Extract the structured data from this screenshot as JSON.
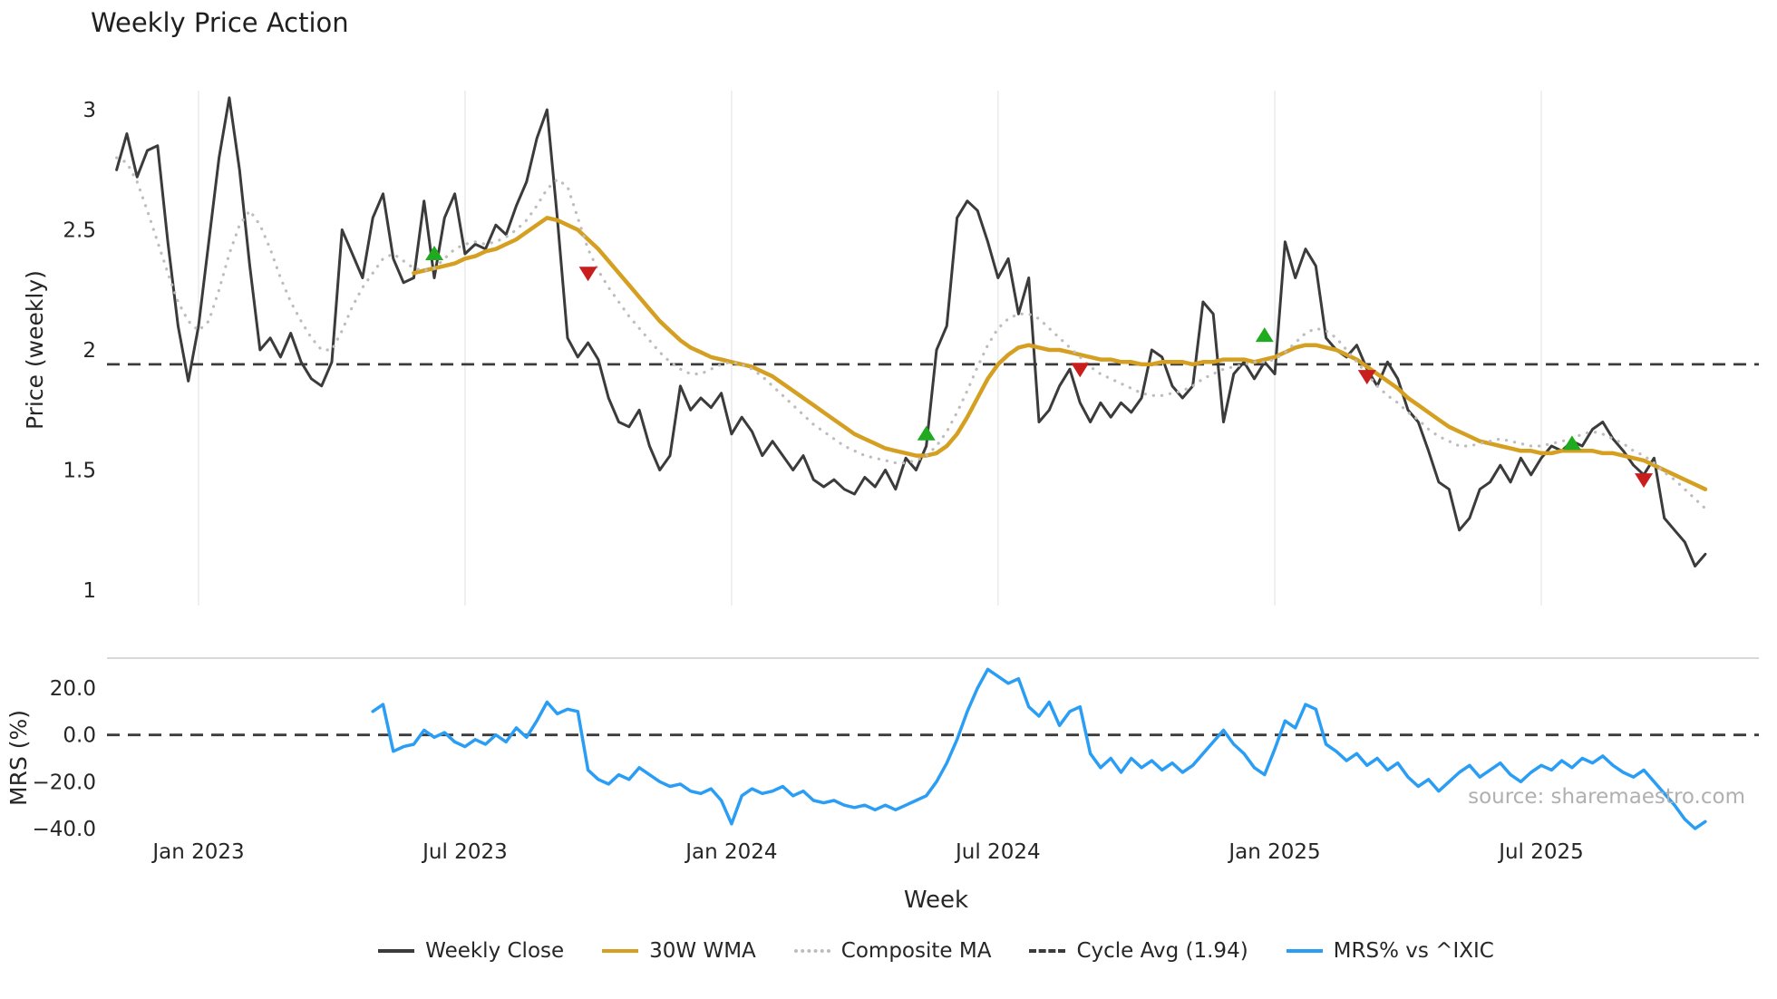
{
  "chart_data": {
    "type": "line",
    "title": "Weekly Price Action",
    "xlabel": "Week",
    "source_text": "source: sharemaestro.com",
    "x_unit": "week_index",
    "x_ticks": [
      {
        "week": 8,
        "label": "Jan 2023"
      },
      {
        "week": 34,
        "label": "Jul 2023"
      },
      {
        "week": 60,
        "label": "Jan 2024"
      },
      {
        "week": 86,
        "label": "Jul 2024"
      },
      {
        "week": 113,
        "label": "Jan 2025"
      },
      {
        "week": 139,
        "label": "Jul 2025"
      }
    ],
    "price_panel": {
      "ylabel": "Price (weekly)",
      "ylim": [
        1,
        3
      ],
      "grid": "vertical-only",
      "cycle_avg": 1.94,
      "y_ticks": [
        {
          "value": 3,
          "label": "3"
        },
        {
          "value": 2.5,
          "label": "2.5"
        },
        {
          "value": 2,
          "label": "2"
        },
        {
          "value": 1.5,
          "label": "1.5"
        },
        {
          "value": 1,
          "label": "1"
        }
      ]
    },
    "mrs_panel": {
      "ylabel": "MRS (%)",
      "ylim": [
        -40,
        20
      ],
      "zero_line": 0,
      "y_ticks": [
        {
          "value": 20,
          "label": "20.0"
        },
        {
          "value": 0,
          "label": "0.0"
        },
        {
          "value": -20,
          "label": "−20.0"
        },
        {
          "value": -40,
          "label": "−40.0"
        }
      ]
    },
    "series": [
      {
        "id": "weekly-close",
        "name": "Weekly Close",
        "panel": "price",
        "color": "#3b3b3b",
        "style": "solid",
        "width": 3,
        "start_week": 0,
        "values": [
          2.75,
          2.9,
          2.72,
          2.83,
          2.85,
          2.45,
          2.1,
          1.87,
          2.1,
          2.45,
          2.8,
          3.05,
          2.75,
          2.35,
          2.0,
          2.05,
          1.97,
          2.07,
          1.95,
          1.88,
          1.85,
          1.95,
          2.5,
          2.4,
          2.3,
          2.55,
          2.65,
          2.38,
          2.28,
          2.3,
          2.62,
          2.3,
          2.55,
          2.65,
          2.4,
          2.44,
          2.42,
          2.52,
          2.48,
          2.6,
          2.7,
          2.88,
          3.0,
          2.55,
          2.05,
          1.97,
          2.03,
          1.96,
          1.8,
          1.7,
          1.68,
          1.75,
          1.6,
          1.5,
          1.56,
          1.85,
          1.75,
          1.8,
          1.76,
          1.82,
          1.65,
          1.72,
          1.66,
          1.56,
          1.62,
          1.56,
          1.5,
          1.56,
          1.46,
          1.43,
          1.46,
          1.42,
          1.4,
          1.47,
          1.43,
          1.5,
          1.42,
          1.55,
          1.5,
          1.6,
          2.0,
          2.1,
          2.55,
          2.62,
          2.58,
          2.45,
          2.3,
          2.38,
          2.15,
          2.3,
          1.7,
          1.75,
          1.85,
          1.92,
          1.78,
          1.7,
          1.78,
          1.72,
          1.78,
          1.74,
          1.8,
          2.0,
          1.97,
          1.85,
          1.8,
          1.85,
          2.2,
          2.15,
          1.7,
          1.9,
          1.95,
          1.88,
          1.95,
          1.9,
          2.45,
          2.3,
          2.42,
          2.35,
          2.05,
          2.0,
          1.97,
          2.02,
          1.92,
          1.85,
          1.95,
          1.88,
          1.75,
          1.7,
          1.58,
          1.45,
          1.42,
          1.25,
          1.3,
          1.42,
          1.45,
          1.52,
          1.45,
          1.55,
          1.48,
          1.55,
          1.6,
          1.58,
          1.62,
          1.6,
          1.67,
          1.7,
          1.63,
          1.58,
          1.52,
          1.48,
          1.55,
          1.3,
          1.25,
          1.2,
          1.1,
          1.15
        ]
      },
      {
        "id": "wma-30w",
        "name": "30W WMA",
        "panel": "price",
        "color": "#d5a021",
        "style": "solid",
        "width": 4.5,
        "start_week": 29,
        "values": [
          2.32,
          2.33,
          2.34,
          2.35,
          2.36,
          2.38,
          2.39,
          2.41,
          2.42,
          2.44,
          2.46,
          2.49,
          2.52,
          2.55,
          2.54,
          2.52,
          2.5,
          2.46,
          2.42,
          2.37,
          2.32,
          2.27,
          2.22,
          2.17,
          2.12,
          2.08,
          2.04,
          2.01,
          1.99,
          1.97,
          1.96,
          1.95,
          1.94,
          1.93,
          1.91,
          1.89,
          1.86,
          1.83,
          1.8,
          1.77,
          1.74,
          1.71,
          1.68,
          1.65,
          1.63,
          1.61,
          1.59,
          1.58,
          1.57,
          1.56,
          1.56,
          1.57,
          1.6,
          1.65,
          1.72,
          1.8,
          1.88,
          1.94,
          1.98,
          2.01,
          2.02,
          2.01,
          2.0,
          2.0,
          1.99,
          1.98,
          1.97,
          1.96,
          1.96,
          1.95,
          1.95,
          1.94,
          1.94,
          1.95,
          1.95,
          1.95,
          1.94,
          1.95,
          1.95,
          1.96,
          1.96,
          1.96,
          1.95,
          1.96,
          1.97,
          1.99,
          2.01,
          2.02,
          2.02,
          2.01,
          2.0,
          1.98,
          1.96,
          1.93,
          1.9,
          1.87,
          1.84,
          1.8,
          1.77,
          1.74,
          1.71,
          1.68,
          1.66,
          1.64,
          1.62,
          1.61,
          1.6,
          1.59,
          1.58,
          1.58,
          1.57,
          1.57,
          1.58,
          1.58,
          1.58,
          1.58,
          1.57,
          1.57,
          1.56,
          1.55,
          1.54,
          1.52,
          1.5,
          1.48,
          1.46,
          1.44,
          1.42
        ]
      },
      {
        "id": "composite-ma",
        "name": "Composite MA",
        "panel": "price",
        "color": "#bdbdbd",
        "style": "dotted",
        "width": 3.2,
        "start_week": 0,
        "values": [
          2.8,
          2.78,
          2.7,
          2.58,
          2.45,
          2.32,
          2.2,
          2.12,
          2.08,
          2.12,
          2.25,
          2.4,
          2.52,
          2.58,
          2.52,
          2.42,
          2.3,
          2.2,
          2.12,
          2.05,
          2.0,
          2.0,
          2.08,
          2.18,
          2.26,
          2.32,
          2.38,
          2.4,
          2.37,
          2.34,
          2.33,
          2.34,
          2.38,
          2.42,
          2.44,
          2.45,
          2.44,
          2.45,
          2.47,
          2.5,
          2.54,
          2.6,
          2.67,
          2.71,
          2.68,
          2.55,
          2.42,
          2.33,
          2.26,
          2.2,
          2.14,
          2.09,
          2.04,
          1.99,
          1.95,
          1.92,
          1.9,
          1.9,
          1.92,
          1.94,
          1.95,
          1.94,
          1.92,
          1.89,
          1.85,
          1.81,
          1.77,
          1.73,
          1.69,
          1.66,
          1.63,
          1.6,
          1.58,
          1.56,
          1.55,
          1.54,
          1.53,
          1.53,
          1.54,
          1.56,
          1.6,
          1.66,
          1.74,
          1.83,
          1.93,
          2.02,
          2.09,
          2.13,
          2.15,
          2.15,
          2.13,
          2.09,
          2.05,
          2.01,
          1.97,
          1.93,
          1.9,
          1.88,
          1.86,
          1.84,
          1.82,
          1.81,
          1.81,
          1.82,
          1.83,
          1.85,
          1.88,
          1.9,
          1.92,
          1.93,
          1.94,
          1.95,
          1.95,
          1.96,
          1.99,
          2.03,
          2.07,
          2.09,
          2.08,
          2.05,
          2.0,
          1.95,
          1.9,
          1.85,
          1.81,
          1.78,
          1.74,
          1.71,
          1.67,
          1.64,
          1.62,
          1.6,
          1.6,
          1.61,
          1.62,
          1.63,
          1.62,
          1.61,
          1.6,
          1.6,
          1.61,
          1.62,
          1.63,
          1.65,
          1.66,
          1.65,
          1.63,
          1.61,
          1.58,
          1.56,
          1.53,
          1.49,
          1.46,
          1.42,
          1.38,
          1.34
        ]
      },
      {
        "id": "mrs",
        "name": "MRS% vs ^IXIC",
        "panel": "mrs",
        "color": "#2a9df4",
        "style": "solid",
        "width": 3.5,
        "start_week": 25,
        "values": [
          10,
          13,
          -7,
          -5,
          -4,
          2,
          -1,
          1,
          -3,
          -5,
          -2,
          -4,
          0,
          -3,
          3,
          -1,
          6,
          14,
          9,
          11,
          10,
          -15,
          -19,
          -21,
          -17,
          -19,
          -14,
          -17,
          -20,
          -22,
          -21,
          -24,
          -25,
          -23,
          -28,
          -38,
          -26,
          -23,
          -25,
          -24,
          -22,
          -26,
          -24,
          -28,
          -29,
          -28,
          -30,
          -31,
          -30,
          -32,
          -30,
          -32,
          -30,
          -28,
          -26,
          -20,
          -12,
          -2,
          10,
          20,
          28,
          25,
          22,
          24,
          12,
          8,
          14,
          4,
          10,
          12,
          -8,
          -14,
          -10,
          -16,
          -10,
          -14,
          -11,
          -15,
          -12,
          -16,
          -13,
          -8,
          -3,
          2,
          -4,
          -8,
          -14,
          -17,
          -6,
          6,
          3,
          13,
          11,
          -4,
          -7,
          -11,
          -8,
          -13,
          -10,
          -15,
          -12,
          -18,
          -22,
          -19,
          -24,
          -20,
          -16,
          -13,
          -18,
          -15,
          -12,
          -17,
          -20,
          -16,
          -13,
          -15,
          -11,
          -14,
          -10,
          -12,
          -9,
          -13,
          -16,
          -18,
          -15,
          -20,
          -25,
          -30,
          -36,
          -40,
          -37
        ]
      }
    ],
    "signals": {
      "buy": {
        "color": "#1faa1f",
        "points": [
          {
            "week": 31,
            "price": 2.4
          },
          {
            "week": 79,
            "price": 1.65
          },
          {
            "week": 112,
            "price": 2.06
          },
          {
            "week": 142,
            "price": 1.61
          }
        ]
      },
      "sell": {
        "color": "#c81e1e",
        "points": [
          {
            "week": 46,
            "price": 2.32
          },
          {
            "week": 94,
            "price": 1.92
          },
          {
            "week": 122,
            "price": 1.89
          },
          {
            "week": 149,
            "price": 1.46
          }
        ]
      }
    },
    "legend": [
      {
        "label": "Weekly Close",
        "color": "#3b3b3b",
        "style": "solid"
      },
      {
        "label": "30W WMA",
        "color": "#d5a021",
        "style": "solid"
      },
      {
        "label": "Composite MA",
        "color": "#bdbdbd",
        "style": "dotted"
      },
      {
        "label": "Cycle Avg (1.94)",
        "color": "#3b3b3b",
        "style": "dashed"
      },
      {
        "label": "MRS% vs ^IXIC",
        "color": "#2a9df4",
        "style": "solid"
      }
    ],
    "legend_position": "bottom-center",
    "colors": {
      "grid": "#e9e9e9",
      "separator": "#cccccc",
      "dashed": "#3b3b3b",
      "tick_text": "#262626",
      "source_text": "#b0b0b0"
    }
  }
}
